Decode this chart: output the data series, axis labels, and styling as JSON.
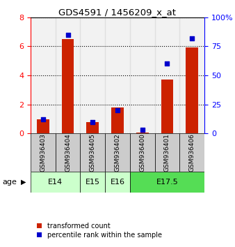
{
  "title": "GDS4591 / 1456209_x_at",
  "samples": [
    "GSM936403",
    "GSM936404",
    "GSM936405",
    "GSM936402",
    "GSM936400",
    "GSM936401",
    "GSM936406"
  ],
  "red_values": [
    1.0,
    6.5,
    0.8,
    1.8,
    0.05,
    3.7,
    5.9
  ],
  "blue_values": [
    12,
    85,
    10,
    20,
    3,
    60,
    82
  ],
  "age_groups": [
    {
      "label": "E14",
      "start": 0,
      "end": 2,
      "color": "#ccffcc"
    },
    {
      "label": "E15",
      "start": 2,
      "end": 3,
      "color": "#ccffcc"
    },
    {
      "label": "E16",
      "start": 3,
      "end": 4,
      "color": "#ccffcc"
    },
    {
      "label": "E17.5",
      "start": 4,
      "end": 7,
      "color": "#55dd55"
    }
  ],
  "left_ylim": [
    0,
    8
  ],
  "right_ylim": [
    0,
    100
  ],
  "left_yticks": [
    0,
    2,
    4,
    6,
    8
  ],
  "right_yticks": [
    0,
    25,
    50,
    75,
    100
  ],
  "right_yticklabels": [
    "0",
    "25",
    "50",
    "75",
    "100%"
  ],
  "bar_color": "#cc2200",
  "dot_color": "#0000cc",
  "sample_box_color": "#cccccc",
  "legend_red_label": "transformed count",
  "legend_blue_label": "percentile rank within the sample",
  "age_label": "age",
  "figsize": [
    3.38,
    3.54
  ],
  "dpi": 100
}
